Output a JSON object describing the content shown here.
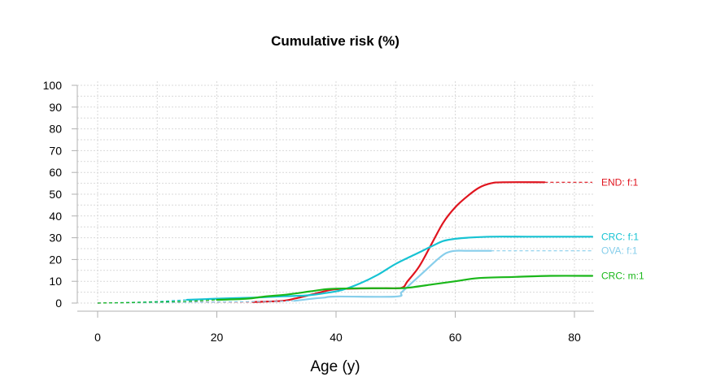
{
  "chart_data": {
    "type": "line",
    "title": "Cumulative risk (%)",
    "xlabel": "Age (y)",
    "ylabel": "",
    "xlim": [
      0,
      82
    ],
    "ylim": [
      0,
      100
    ],
    "xticks": [
      0,
      20,
      40,
      60,
      80
    ],
    "yticks": [
      0,
      10,
      20,
      30,
      40,
      50,
      60,
      70,
      80,
      90,
      100
    ],
    "grid": true,
    "series": [
      {
        "name": "END: f:1",
        "color": "#e0141e",
        "solid": [
          [
            26,
            0.5
          ],
          [
            31,
            1
          ],
          [
            33,
            2
          ],
          [
            36,
            4
          ],
          [
            39,
            6
          ],
          [
            41,
            6.5
          ],
          [
            44,
            6.7
          ],
          [
            48,
            6.8
          ],
          [
            51,
            7
          ],
          [
            52,
            10
          ],
          [
            54,
            17
          ],
          [
            56,
            27
          ],
          [
            58,
            37
          ],
          [
            60,
            44
          ],
          [
            62,
            49
          ],
          [
            64,
            53
          ],
          [
            66,
            55
          ],
          [
            68,
            55.5
          ],
          [
            75,
            55.5
          ]
        ],
        "dashed": [
          [
            0,
            0
          ],
          [
            5,
            0.2
          ],
          [
            10,
            0.3
          ],
          [
            15,
            0.4
          ],
          [
            20,
            0.5
          ],
          [
            26,
            0.5
          ]
        ],
        "dashed_tail": [
          [
            75,
            55.5
          ],
          [
            83,
            55.5
          ]
        ]
      },
      {
        "name": "CRC: f:1",
        "color": "#17c3d3",
        "solid": [
          [
            15,
            1.5
          ],
          [
            20,
            2
          ],
          [
            26,
            2.5
          ],
          [
            30,
            3
          ],
          [
            35,
            3.5
          ],
          [
            38,
            4.5
          ],
          [
            41,
            6
          ],
          [
            44,
            9
          ],
          [
            47,
            13
          ],
          [
            50,
            18
          ],
          [
            53,
            22
          ],
          [
            56,
            26
          ],
          [
            58,
            28.5
          ],
          [
            60,
            29.5
          ],
          [
            62,
            30
          ],
          [
            66,
            30.5
          ],
          [
            72,
            30.5
          ],
          [
            83,
            30.5
          ]
        ],
        "dashed": [
          [
            0,
            0
          ],
          [
            5,
            0.3
          ],
          [
            10,
            0.7
          ],
          [
            15,
            1.5
          ]
        ],
        "dashed_tail": []
      },
      {
        "name": "OVA: f:1",
        "color": "#87ceeb",
        "solid": [
          [
            33,
            1
          ],
          [
            36,
            2
          ],
          [
            38,
            2.5
          ],
          [
            40,
            3
          ],
          [
            50,
            3
          ],
          [
            51,
            5
          ],
          [
            53,
            10
          ],
          [
            55,
            15
          ],
          [
            57,
            20
          ],
          [
            58.5,
            23
          ],
          [
            60,
            24
          ],
          [
            62,
            24
          ],
          [
            66,
            24
          ]
        ],
        "dashed": [
          [
            0,
            0
          ],
          [
            10,
            0.2
          ],
          [
            20,
            0.5
          ],
          [
            30,
            0.8
          ],
          [
            33,
            1
          ]
        ],
        "dashed_tail": [
          [
            66,
            24
          ],
          [
            83,
            24
          ]
        ]
      },
      {
        "name": "CRC: m:1",
        "color": "#1ab71a",
        "solid": [
          [
            20,
            1.5
          ],
          [
            25,
            2
          ],
          [
            28,
            3
          ],
          [
            32,
            4
          ],
          [
            36,
            5.5
          ],
          [
            39,
            6.5
          ],
          [
            44,
            6.8
          ],
          [
            50,
            6.8
          ],
          [
            52,
            7
          ],
          [
            56,
            8.5
          ],
          [
            60,
            10
          ],
          [
            64,
            11.5
          ],
          [
            70,
            12
          ],
          [
            76,
            12.5
          ],
          [
            83,
            12.5
          ]
        ],
        "dashed": [
          [
            0,
            0
          ],
          [
            5,
            0.2
          ],
          [
            10,
            0.5
          ],
          [
            15,
            0.8
          ],
          [
            20,
            1.5
          ]
        ],
        "dashed_tail": []
      }
    ]
  }
}
